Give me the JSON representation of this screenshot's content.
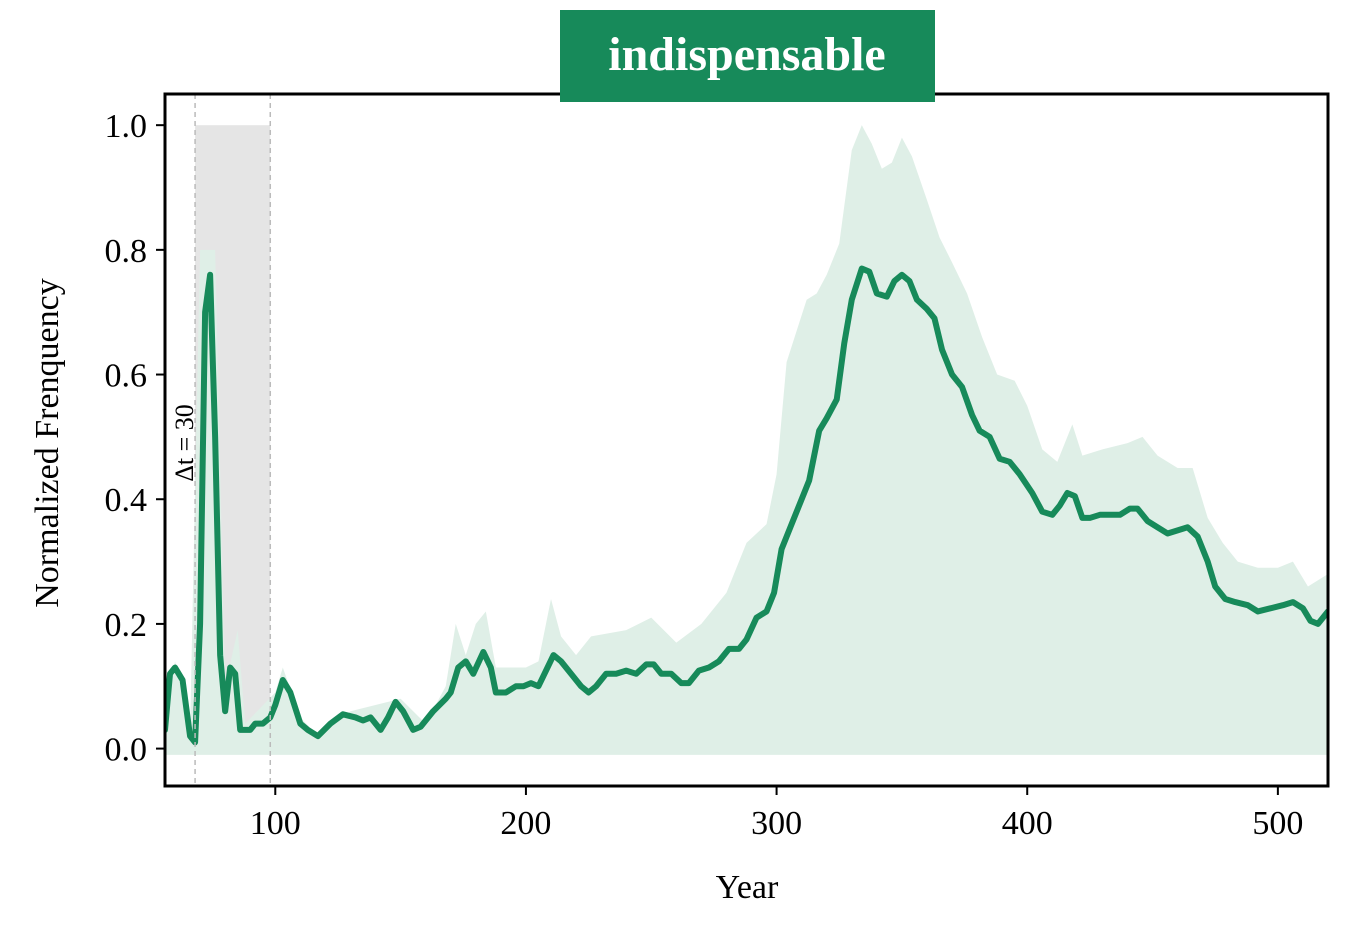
{
  "chart_data": {
    "type": "line",
    "title": "indispensable",
    "title_color": "#178a5a",
    "x_label": "Year",
    "y_label": "Normalized Frenquency",
    "xlim": [
      56,
      520
    ],
    "ylim": [
      -0.06,
      1.05
    ],
    "xticks": [
      100,
      200,
      300,
      400,
      500
    ],
    "yticks": [
      {
        "value": 0,
        "label": "0.0"
      },
      0.2,
      0.4,
      0.6,
      0.8,
      {
        "value": 1,
        "label": "1.0"
      }
    ],
    "grid": false,
    "series": [
      {
        "color": "#178a5a",
        "x": [
          56,
          58,
          60,
          63,
          66,
          68,
          70,
          72,
          74,
          76,
          78,
          80,
          82,
          84,
          86,
          90,
          92,
          95,
          98,
          100,
          103,
          106,
          110,
          113,
          117,
          122,
          127,
          132,
          135,
          138,
          142,
          145,
          148,
          151,
          155,
          158,
          163,
          168,
          170,
          173,
          176,
          179,
          183,
          186,
          188,
          192,
          196,
          199,
          202,
          205,
          208,
          211,
          214,
          218,
          222,
          225,
          228,
          232,
          236,
          240,
          244,
          248,
          251,
          254,
          258,
          262,
          265,
          269,
          273,
          277,
          281,
          285,
          288,
          292,
          296,
          299,
          302,
          306,
          310,
          313,
          317,
          320,
          324,
          327,
          330,
          334,
          337,
          340,
          344,
          347,
          350,
          353,
          356,
          360,
          363,
          366,
          370,
          374,
          378,
          381,
          385,
          389,
          393,
          397,
          402,
          406,
          410,
          413,
          416,
          419,
          422,
          425,
          429,
          433,
          437,
          441,
          444,
          448,
          452,
          456,
          460,
          464,
          468,
          472,
          475,
          479,
          483,
          488,
          492,
          497,
          502,
          506,
          510,
          513,
          516,
          520
        ],
        "values": [
          0.03,
          0.12,
          0.13,
          0.11,
          0.02,
          0.01,
          0.2,
          0.7,
          0.76,
          0.5,
          0.15,
          0.06,
          0.13,
          0.12,
          0.03,
          0.03,
          0.04,
          0.04,
          0.05,
          0.07,
          0.11,
          0.09,
          0.04,
          0.03,
          0.02,
          0.04,
          0.055,
          0.05,
          0.045,
          0.05,
          0.03,
          0.05,
          0.075,
          0.06,
          0.03,
          0.035,
          0.06,
          0.08,
          0.09,
          0.13,
          0.14,
          0.12,
          0.155,
          0.13,
          0.09,
          0.09,
          0.1,
          0.1,
          0.105,
          0.1,
          0.125,
          0.15,
          0.14,
          0.12,
          0.1,
          0.09,
          0.1,
          0.12,
          0.12,
          0.125,
          0.12,
          0.135,
          0.135,
          0.12,
          0.12,
          0.105,
          0.105,
          0.125,
          0.13,
          0.14,
          0.16,
          0.16,
          0.175,
          0.21,
          0.22,
          0.25,
          0.32,
          0.36,
          0.4,
          0.43,
          0.51,
          0.53,
          0.56,
          0.65,
          0.72,
          0.77,
          0.765,
          0.73,
          0.725,
          0.75,
          0.76,
          0.75,
          0.72,
          0.705,
          0.69,
          0.64,
          0.6,
          0.58,
          0.535,
          0.51,
          0.5,
          0.465,
          0.46,
          0.44,
          0.41,
          0.38,
          0.375,
          0.39,
          0.41,
          0.405,
          0.37,
          0.37,
          0.375,
          0.375,
          0.375,
          0.385,
          0.385,
          0.365,
          0.355,
          0.345,
          0.35,
          0.355,
          0.34,
          0.3,
          0.26,
          0.24,
          0.235,
          0.23,
          0.22,
          0.225,
          0.23,
          0.235,
          0.225,
          0.205,
          0.2,
          0.22
        ]
      }
    ],
    "band": {
      "color": "#dfefe7",
      "base": -0.01,
      "x": [
        56,
        60,
        66,
        70,
        76,
        80,
        85,
        88,
        100,
        103,
        110,
        117,
        130,
        150,
        160,
        168,
        172,
        176,
        180,
        184,
        188,
        200,
        205,
        210,
        214,
        220,
        226,
        240,
        250,
        260,
        270,
        280,
        288,
        296,
        300,
        304,
        308,
        312,
        316,
        320,
        325,
        330,
        334,
        338,
        342,
        346,
        350,
        354,
        360,
        365,
        370,
        376,
        382,
        388,
        395,
        400,
        406,
        412,
        418,
        422,
        430,
        440,
        446,
        452,
        460,
        466,
        472,
        478,
        484,
        492,
        500,
        506,
        512,
        516,
        520
      ],
      "upper": [
        0.05,
        0.14,
        0.03,
        0.8,
        0.8,
        0.1,
        0.19,
        0.04,
        0.09,
        0.13,
        0.05,
        0.02,
        0.06,
        0.08,
        0.04,
        0.1,
        0.2,
        0.15,
        0.2,
        0.22,
        0.13,
        0.13,
        0.14,
        0.24,
        0.18,
        0.15,
        0.18,
        0.19,
        0.21,
        0.17,
        0.2,
        0.25,
        0.33,
        0.36,
        0.44,
        0.62,
        0.67,
        0.72,
        0.73,
        0.76,
        0.81,
        0.96,
        1.0,
        0.97,
        0.93,
        0.94,
        0.98,
        0.95,
        0.88,
        0.82,
        0.78,
        0.73,
        0.66,
        0.6,
        0.59,
        0.55,
        0.48,
        0.46,
        0.52,
        0.47,
        0.48,
        0.49,
        0.5,
        0.47,
        0.45,
        0.45,
        0.37,
        0.33,
        0.3,
        0.29,
        0.29,
        0.3,
        0.26,
        0.27,
        0.28
      ]
    },
    "highlight": {
      "start": 68,
      "end": 98,
      "top": 1.0,
      "color": "#e5e5e5",
      "label": "Δt = 30"
    }
  }
}
